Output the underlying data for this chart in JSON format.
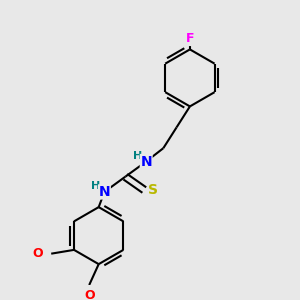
{
  "background_color": "#e8e8e8",
  "bond_color": "#000000",
  "atom_colors": {
    "N": "#0000ff",
    "S": "#b8b800",
    "F": "#ff00ff",
    "O": "#ff0000",
    "H_N": "#008080",
    "C": "#000000"
  },
  "figsize": [
    3.0,
    3.0
  ],
  "dpi": 100
}
